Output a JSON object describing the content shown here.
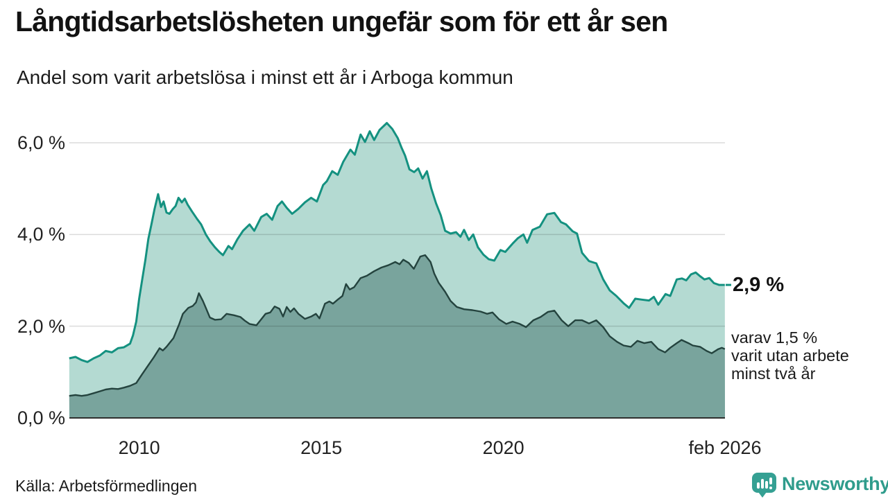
{
  "header": {
    "title": "Långtidsarbetslösheten ungefär som för ett år sen",
    "subtitle": "Andel som varit arbetslösa i minst ett år i Arboga kommun"
  },
  "annotations": {
    "end_value": "2,9 %",
    "sub_lines": [
      "varav 1,5 %",
      "varit utan arbete",
      "minst två år"
    ]
  },
  "footer": {
    "source": "Källa: Arbetsförmedlingen",
    "brand": "Newsworthy"
  },
  "colors": {
    "total_line": "#149180",
    "total_fill": "#b4dad2",
    "two_year_line": "#24433e",
    "two_year_fill": "#79a49d",
    "gridline": "rgba(0,0,0,0.14)",
    "baseline": "#2f2f2f",
    "brand_teal": "#2f9c8c"
  },
  "chart_data": {
    "type": "area",
    "title": "Långtidsarbetslösheten ungefär som för ett år sen",
    "subtitle": "Andel som varit arbetslösa i minst ett år i Arboga kommun",
    "unit": "%",
    "grid": "horizontal",
    "x_axis": {
      "range": [
        2008.083,
        2026.083
      ],
      "ticks": [
        {
          "t": 2010,
          "label": "2010"
        },
        {
          "t": 2015,
          "label": "2015"
        },
        {
          "t": 2020,
          "label": "2020"
        },
        {
          "t": 2026.083,
          "label": "feb 2026"
        }
      ]
    },
    "y_axis": {
      "range": [
        0,
        6.7
      ],
      "gridlines": [
        2,
        4,
        6
      ],
      "ticks": [
        {
          "v": 0,
          "label": "0,0 %"
        },
        {
          "v": 2,
          "label": "2,0 %"
        },
        {
          "v": 4,
          "label": "4,0 %"
        },
        {
          "v": 6,
          "label": "6,0 %"
        }
      ]
    },
    "series": [
      {
        "name": "arbetslosa-minst-ett-ar",
        "end_label": "2,9 %",
        "end_value": 2.9,
        "points": [
          [
            2008.08,
            1.3
          ],
          [
            2008.25,
            1.33
          ],
          [
            2008.42,
            1.26
          ],
          [
            2008.58,
            1.22
          ],
          [
            2008.75,
            1.3
          ],
          [
            2008.92,
            1.36
          ],
          [
            2009.08,
            1.46
          ],
          [
            2009.25,
            1.43
          ],
          [
            2009.42,
            1.52
          ],
          [
            2009.58,
            1.54
          ],
          [
            2009.75,
            1.62
          ],
          [
            2009.83,
            1.8
          ],
          [
            2009.92,
            2.1
          ],
          [
            2010.0,
            2.6
          ],
          [
            2010.08,
            3.0
          ],
          [
            2010.17,
            3.45
          ],
          [
            2010.25,
            3.9
          ],
          [
            2010.33,
            4.2
          ],
          [
            2010.42,
            4.55
          ],
          [
            2010.52,
            4.88
          ],
          [
            2010.6,
            4.6
          ],
          [
            2010.67,
            4.72
          ],
          [
            2010.75,
            4.48
          ],
          [
            2010.83,
            4.45
          ],
          [
            2010.92,
            4.55
          ],
          [
            2011.0,
            4.62
          ],
          [
            2011.08,
            4.8
          ],
          [
            2011.17,
            4.7
          ],
          [
            2011.25,
            4.78
          ],
          [
            2011.33,
            4.65
          ],
          [
            2011.45,
            4.5
          ],
          [
            2011.58,
            4.35
          ],
          [
            2011.7,
            4.22
          ],
          [
            2011.83,
            4.0
          ],
          [
            2011.95,
            3.85
          ],
          [
            2012.08,
            3.72
          ],
          [
            2012.2,
            3.62
          ],
          [
            2012.3,
            3.55
          ],
          [
            2012.45,
            3.75
          ],
          [
            2012.55,
            3.68
          ],
          [
            2012.7,
            3.9
          ],
          [
            2012.85,
            4.08
          ],
          [
            2013.03,
            4.22
          ],
          [
            2013.16,
            4.08
          ],
          [
            2013.35,
            4.38
          ],
          [
            2013.5,
            4.45
          ],
          [
            2013.65,
            4.32
          ],
          [
            2013.8,
            4.62
          ],
          [
            2013.92,
            4.72
          ],
          [
            2014.05,
            4.58
          ],
          [
            2014.2,
            4.45
          ],
          [
            2014.37,
            4.56
          ],
          [
            2014.55,
            4.7
          ],
          [
            2014.72,
            4.8
          ],
          [
            2014.88,
            4.72
          ],
          [
            2015.05,
            5.08
          ],
          [
            2015.15,
            5.16
          ],
          [
            2015.3,
            5.38
          ],
          [
            2015.45,
            5.3
          ],
          [
            2015.6,
            5.58
          ],
          [
            2015.8,
            5.85
          ],
          [
            2015.92,
            5.74
          ],
          [
            2016.08,
            6.18
          ],
          [
            2016.2,
            6.02
          ],
          [
            2016.33,
            6.25
          ],
          [
            2016.45,
            6.06
          ],
          [
            2016.6,
            6.28
          ],
          [
            2016.8,
            6.43
          ],
          [
            2016.95,
            6.3
          ],
          [
            2017.1,
            6.1
          ],
          [
            2017.2,
            5.9
          ],
          [
            2017.3,
            5.72
          ],
          [
            2017.42,
            5.42
          ],
          [
            2017.55,
            5.36
          ],
          [
            2017.66,
            5.44
          ],
          [
            2017.78,
            5.22
          ],
          [
            2017.9,
            5.38
          ],
          [
            2018.02,
            5.0
          ],
          [
            2018.15,
            4.68
          ],
          [
            2018.28,
            4.42
          ],
          [
            2018.4,
            4.08
          ],
          [
            2018.55,
            4.02
          ],
          [
            2018.7,
            4.05
          ],
          [
            2018.82,
            3.95
          ],
          [
            2018.92,
            4.1
          ],
          [
            2019.05,
            3.88
          ],
          [
            2019.17,
            4.0
          ],
          [
            2019.3,
            3.72
          ],
          [
            2019.45,
            3.56
          ],
          [
            2019.6,
            3.46
          ],
          [
            2019.75,
            3.43
          ],
          [
            2019.92,
            3.66
          ],
          [
            2020.05,
            3.62
          ],
          [
            2020.25,
            3.8
          ],
          [
            2020.4,
            3.92
          ],
          [
            2020.55,
            4.0
          ],
          [
            2020.65,
            3.82
          ],
          [
            2020.8,
            4.1
          ],
          [
            2021.0,
            4.17
          ],
          [
            2021.2,
            4.44
          ],
          [
            2021.4,
            4.47
          ],
          [
            2021.58,
            4.27
          ],
          [
            2021.72,
            4.22
          ],
          [
            2021.9,
            4.07
          ],
          [
            2022.02,
            4.02
          ],
          [
            2022.16,
            3.6
          ],
          [
            2022.35,
            3.42
          ],
          [
            2022.55,
            3.37
          ],
          [
            2022.74,
            3.02
          ],
          [
            2022.92,
            2.78
          ],
          [
            2023.1,
            2.66
          ],
          [
            2023.3,
            2.5
          ],
          [
            2023.45,
            2.4
          ],
          [
            2023.62,
            2.6
          ],
          [
            2023.8,
            2.58
          ],
          [
            2024.0,
            2.56
          ],
          [
            2024.13,
            2.64
          ],
          [
            2024.25,
            2.47
          ],
          [
            2024.45,
            2.7
          ],
          [
            2024.58,
            2.66
          ],
          [
            2024.76,
            3.02
          ],
          [
            2024.9,
            3.04
          ],
          [
            2025.02,
            3.0
          ],
          [
            2025.15,
            3.13
          ],
          [
            2025.28,
            3.17
          ],
          [
            2025.4,
            3.09
          ],
          [
            2025.52,
            3.02
          ],
          [
            2025.65,
            3.05
          ],
          [
            2025.78,
            2.94
          ],
          [
            2025.92,
            2.9
          ],
          [
            2026.08,
            2.9
          ]
        ]
      },
      {
        "name": "utan-arbete-minst-tva-ar",
        "end_label": "varav 1,5 % varit utan arbete minst två år",
        "end_value": 1.5,
        "points": [
          [
            2008.08,
            0.48
          ],
          [
            2008.25,
            0.5
          ],
          [
            2008.42,
            0.48
          ],
          [
            2008.58,
            0.5
          ],
          [
            2008.75,
            0.54
          ],
          [
            2008.92,
            0.58
          ],
          [
            2009.08,
            0.62
          ],
          [
            2009.25,
            0.64
          ],
          [
            2009.42,
            0.63
          ],
          [
            2009.58,
            0.66
          ],
          [
            2009.75,
            0.7
          ],
          [
            2009.92,
            0.76
          ],
          [
            2010.08,
            0.95
          ],
          [
            2010.25,
            1.15
          ],
          [
            2010.4,
            1.32
          ],
          [
            2010.56,
            1.52
          ],
          [
            2010.65,
            1.47
          ],
          [
            2010.75,
            1.55
          ],
          [
            2010.94,
            1.74
          ],
          [
            2011.1,
            2.05
          ],
          [
            2011.2,
            2.27
          ],
          [
            2011.35,
            2.4
          ],
          [
            2011.47,
            2.44
          ],
          [
            2011.56,
            2.52
          ],
          [
            2011.64,
            2.72
          ],
          [
            2011.75,
            2.55
          ],
          [
            2011.83,
            2.4
          ],
          [
            2011.94,
            2.19
          ],
          [
            2012.08,
            2.14
          ],
          [
            2012.25,
            2.15
          ],
          [
            2012.4,
            2.27
          ],
          [
            2012.6,
            2.24
          ],
          [
            2012.78,
            2.2
          ],
          [
            2012.9,
            2.12
          ],
          [
            2013.03,
            2.05
          ],
          [
            2013.22,
            2.02
          ],
          [
            2013.35,
            2.15
          ],
          [
            2013.47,
            2.27
          ],
          [
            2013.6,
            2.3
          ],
          [
            2013.72,
            2.43
          ],
          [
            2013.85,
            2.38
          ],
          [
            2013.95,
            2.21
          ],
          [
            2014.05,
            2.42
          ],
          [
            2014.15,
            2.31
          ],
          [
            2014.25,
            2.39
          ],
          [
            2014.37,
            2.27
          ],
          [
            2014.55,
            2.16
          ],
          [
            2014.72,
            2.21
          ],
          [
            2014.85,
            2.27
          ],
          [
            2014.95,
            2.17
          ],
          [
            2015.1,
            2.49
          ],
          [
            2015.22,
            2.54
          ],
          [
            2015.32,
            2.49
          ],
          [
            2015.45,
            2.58
          ],
          [
            2015.58,
            2.66
          ],
          [
            2015.68,
            2.92
          ],
          [
            2015.78,
            2.8
          ],
          [
            2015.9,
            2.85
          ],
          [
            2016.08,
            3.05
          ],
          [
            2016.25,
            3.1
          ],
          [
            2016.45,
            3.2
          ],
          [
            2016.65,
            3.28
          ],
          [
            2016.84,
            3.33
          ],
          [
            2017.03,
            3.4
          ],
          [
            2017.15,
            3.35
          ],
          [
            2017.25,
            3.45
          ],
          [
            2017.4,
            3.38
          ],
          [
            2017.54,
            3.25
          ],
          [
            2017.72,
            3.52
          ],
          [
            2017.85,
            3.55
          ],
          [
            2018.0,
            3.4
          ],
          [
            2018.1,
            3.15
          ],
          [
            2018.22,
            2.95
          ],
          [
            2018.4,
            2.75
          ],
          [
            2018.55,
            2.55
          ],
          [
            2018.72,
            2.42
          ],
          [
            2018.92,
            2.37
          ],
          [
            2019.15,
            2.35
          ],
          [
            2019.37,
            2.32
          ],
          [
            2019.55,
            2.27
          ],
          [
            2019.7,
            2.3
          ],
          [
            2019.88,
            2.15
          ],
          [
            2020.08,
            2.05
          ],
          [
            2020.25,
            2.1
          ],
          [
            2020.45,
            2.05
          ],
          [
            2020.62,
            1.98
          ],
          [
            2020.82,
            2.13
          ],
          [
            2021.02,
            2.2
          ],
          [
            2021.22,
            2.31
          ],
          [
            2021.4,
            2.34
          ],
          [
            2021.6,
            2.13
          ],
          [
            2021.78,
            2.0
          ],
          [
            2021.97,
            2.13
          ],
          [
            2022.16,
            2.13
          ],
          [
            2022.35,
            2.06
          ],
          [
            2022.55,
            2.13
          ],
          [
            2022.74,
            1.98
          ],
          [
            2022.92,
            1.78
          ],
          [
            2023.12,
            1.66
          ],
          [
            2023.3,
            1.58
          ],
          [
            2023.5,
            1.55
          ],
          [
            2023.68,
            1.68
          ],
          [
            2023.87,
            1.63
          ],
          [
            2024.06,
            1.66
          ],
          [
            2024.25,
            1.5
          ],
          [
            2024.44,
            1.43
          ],
          [
            2024.58,
            1.53
          ],
          [
            2024.76,
            1.63
          ],
          [
            2024.89,
            1.7
          ],
          [
            2025.08,
            1.63
          ],
          [
            2025.2,
            1.58
          ],
          [
            2025.4,
            1.55
          ],
          [
            2025.58,
            1.46
          ],
          [
            2025.72,
            1.41
          ],
          [
            2025.9,
            1.5
          ],
          [
            2026.0,
            1.53
          ],
          [
            2026.08,
            1.5
          ]
        ]
      }
    ]
  }
}
